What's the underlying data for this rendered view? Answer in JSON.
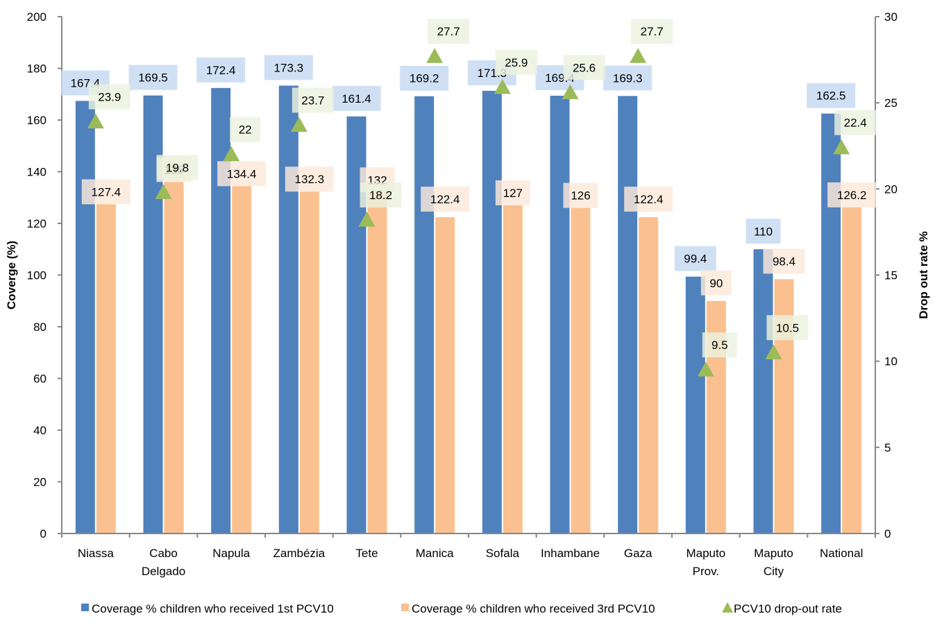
{
  "chart_data": {
    "type": "bar",
    "categories": [
      [
        "Niassa"
      ],
      [
        "Cabo",
        "Delgado"
      ],
      [
        "Napula"
      ],
      [
        "Zambézia"
      ],
      [
        "Tete"
      ],
      [
        "Manica"
      ],
      [
        "Sofala"
      ],
      [
        "Inhambane"
      ],
      [
        "Gaza"
      ],
      [
        "Maputo",
        "Prov."
      ],
      [
        "Maputo",
        "City"
      ],
      [
        "National"
      ]
    ],
    "series": [
      {
        "name": "Coverage % children who received 1st PCV10",
        "kind": "bar",
        "axis": "left",
        "color": "#4f81bd",
        "label_bg": "#c6d9f1",
        "values": [
          167.4,
          169.5,
          172.4,
          173.3,
          161.4,
          169.2,
          171.3,
          169.4,
          169.3,
          99.4,
          110,
          162.5
        ]
      },
      {
        "name": "Coverage % children who received 3rd PCV10",
        "kind": "bar",
        "axis": "left",
        "color": "#fac090",
        "label_bg": "#fde9d9",
        "values": [
          127.4,
          136,
          134.4,
          132.3,
          132,
          122.4,
          127,
          126,
          122.4,
          90,
          98.4,
          126.2
        ]
      },
      {
        "name": "PCV10 drop-out rate",
        "kind": "marker",
        "axis": "right",
        "color": "#9bbb59",
        "label_bg": "#ebf1de",
        "values": [
          23.9,
          19.8,
          22,
          23.7,
          18.2,
          27.7,
          25.9,
          25.6,
          27.7,
          9.5,
          10.5,
          22.4
        ]
      }
    ],
    "y_left": {
      "label": "Coverge (%)",
      "range": [
        0,
        200
      ],
      "ticks": [
        "0",
        "20",
        "40",
        "60",
        "80",
        "100",
        "120",
        "140",
        "160",
        "180",
        "200"
      ]
    },
    "y_right": {
      "label": "Drop out rate %",
      "range": [
        0,
        30
      ],
      "ticks": [
        "0",
        "5",
        "10",
        "15",
        "20",
        "25",
        "30"
      ]
    },
    "grid": false,
    "legend_position": "bottom"
  }
}
